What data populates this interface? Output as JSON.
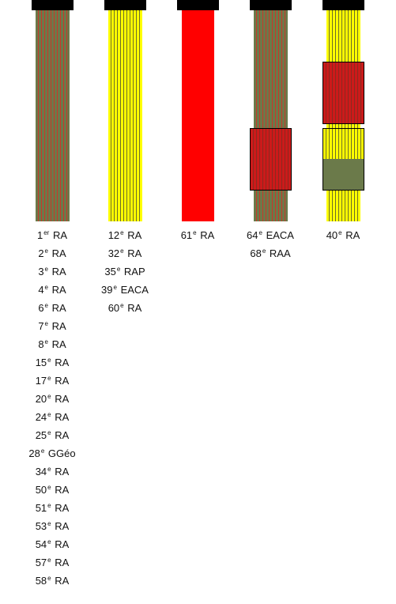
{
  "colors": {
    "red": "#ff0000",
    "dark_red": "#cc1a1a",
    "olive": "#6b7a4a",
    "yellow": "#ffff00",
    "stripe_line": "#000000"
  },
  "flags": [
    {
      "id": "flag-1",
      "pattern": "olive-red-stripes",
      "labels": [
        {
          "num": "1",
          "sup": "er",
          "name": "RA"
        },
        {
          "num": "2",
          "sup": "e",
          "name": "RA"
        },
        {
          "num": "3",
          "sup": "e",
          "name": "RA"
        },
        {
          "num": "4",
          "sup": "e",
          "name": "RA"
        },
        {
          "num": "6",
          "sup": "e",
          "name": "RA"
        },
        {
          "num": "7",
          "sup": "e",
          "name": "RA"
        },
        {
          "num": "8",
          "sup": "e",
          "name": "RA"
        },
        {
          "num": "15",
          "sup": "e",
          "name": "RA"
        },
        {
          "num": "17",
          "sup": "e",
          "name": "RA"
        },
        {
          "num": "20",
          "sup": "e",
          "name": "RA"
        },
        {
          "num": "24",
          "sup": "e",
          "name": "RA"
        },
        {
          "num": "25",
          "sup": "e",
          "name": "RA"
        },
        {
          "num": "28",
          "sup": "e",
          "name": "GGéo"
        },
        {
          "num": "34",
          "sup": "e",
          "name": "RA"
        },
        {
          "num": "50",
          "sup": "e",
          "name": "RA"
        },
        {
          "num": "51",
          "sup": "e",
          "name": "RA"
        },
        {
          "num": "53",
          "sup": "e",
          "name": "RA"
        },
        {
          "num": "54",
          "sup": "e",
          "name": "RA"
        },
        {
          "num": "57",
          "sup": "e",
          "name": "RA"
        },
        {
          "num": "58",
          "sup": "e",
          "name": "RA"
        }
      ]
    },
    {
      "id": "flag-2",
      "pattern": "yellow-stripes",
      "labels": [
        {
          "num": "12",
          "sup": "e",
          "name": "RA"
        },
        {
          "num": "32",
          "sup": "e",
          "name": "RA"
        },
        {
          "num": "35",
          "sup": "e",
          "name": "RAP"
        },
        {
          "num": "39",
          "sup": "e",
          "name": "EACA"
        },
        {
          "num": "60",
          "sup": "e",
          "name": "RA"
        }
      ]
    },
    {
      "id": "flag-3",
      "pattern": "solid-red",
      "labels": [
        {
          "num": "61",
          "sup": "e",
          "name": "RA"
        }
      ]
    },
    {
      "id": "flag-4",
      "pattern": "olive-with-red-patch",
      "labels": [
        {
          "num": "64",
          "sup": "e",
          "name": "EACA"
        },
        {
          "num": "68",
          "sup": "e",
          "name": "RAA"
        }
      ]
    },
    {
      "id": "flag-5",
      "pattern": "yellow-with-red-and-yellow-olive-patches",
      "labels": [
        {
          "num": "40",
          "sup": "e",
          "name": "RA"
        }
      ]
    }
  ]
}
